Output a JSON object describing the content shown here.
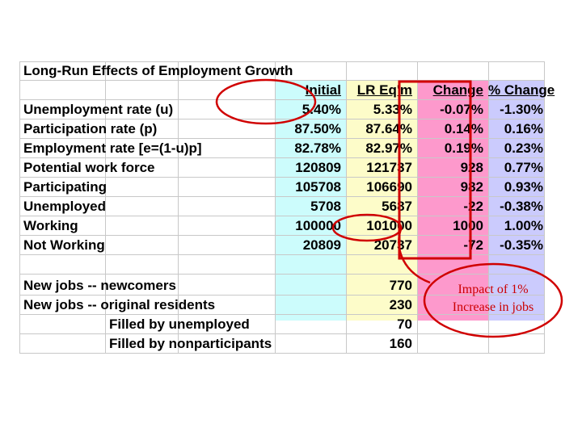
{
  "sheet": {
    "title": "Long-Run Effects of Employment Growth",
    "headers": {
      "initial": "Initial",
      "lr": "LR Eq'm",
      "change": "Change",
      "pct": "% Change"
    },
    "rows": [
      {
        "label": "Unemployment rate (u)",
        "initial": "5.40%",
        "lr": "5.33%",
        "change": "-0.07%",
        "pct": "-1.30%"
      },
      {
        "label": "Participation rate (p)",
        "initial": "87.50%",
        "lr": "87.64%",
        "change": "0.14%",
        "pct": "0.16%"
      },
      {
        "label": "Employment rate [e=(1-u)p]",
        "initial": "82.78%",
        "lr": "82.97%",
        "change": "0.19%",
        "pct": "0.23%"
      },
      {
        "label": "Potential work force",
        "initial": "120809",
        "lr": "121737",
        "change": "928",
        "pct": "0.77%"
      },
      {
        "label": "Participating",
        "initial": "105708",
        "lr": "106690",
        "change": "982",
        "pct": "0.93%"
      },
      {
        "label": "Unemployed",
        "initial": "5708",
        "lr": "5687",
        "change": "-22",
        "pct": "-0.38%"
      },
      {
        "label": "Working",
        "initial": "100000",
        "lr": "101000",
        "change": "1000",
        "pct": "1.00%"
      },
      {
        "label": "Not Working",
        "initial": "20809",
        "lr": "20737",
        "change": "-72",
        "pct": "-0.35%"
      }
    ],
    "jobs": [
      {
        "label": "New jobs -- newcomers",
        "value": "770"
      },
      {
        "label": "New jobs -- original residents",
        "value": "230"
      },
      {
        "label": "Filled by unemployed",
        "value": "70"
      },
      {
        "label": "Filled by nonparticipants",
        "value": "160"
      }
    ]
  },
  "annotation": {
    "line1": "Impact of 1%",
    "line2": "Increase in jobs"
  },
  "colors": {
    "initial_band": "#ccfcfc",
    "lr_band": "#fdfcc9",
    "change_band": "#fd99cc",
    "pct_band": "#cbcbfd",
    "annotation_red": "#cc0000"
  }
}
